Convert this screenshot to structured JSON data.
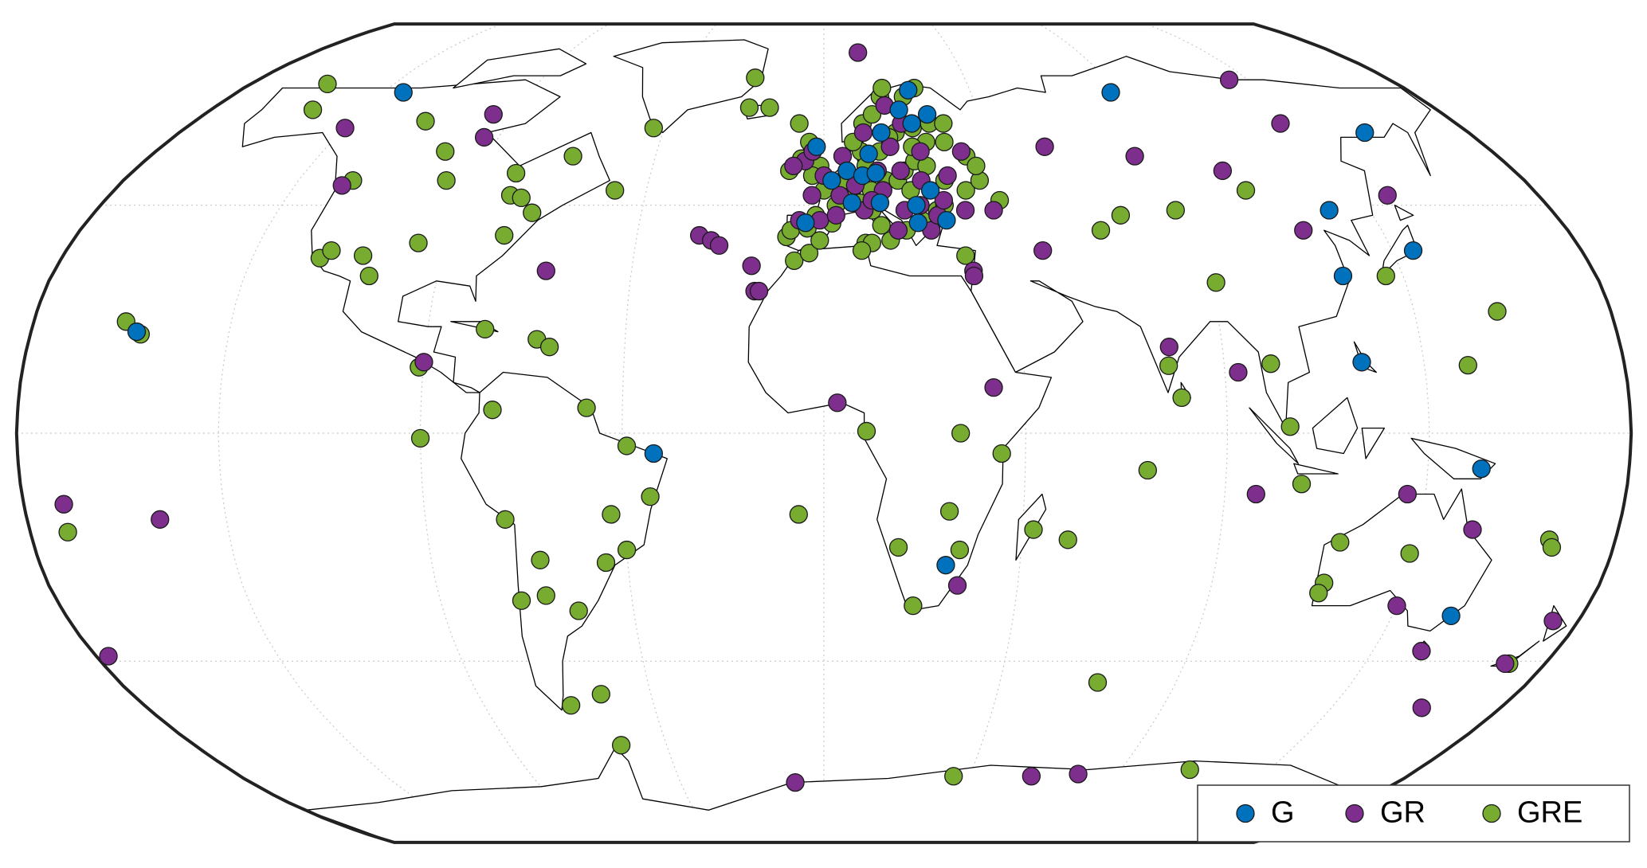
{
  "map": {
    "legend": "lower right",
    "series": [
      {
        "name": "G",
        "color": "#0072bd",
        "points": [
          [
            -129,
            69
          ],
          [
            -156,
            20
          ],
          [
            -38,
            -4
          ],
          [
            28,
            -26
          ],
          [
            88,
            69
          ],
          [
            151,
            60
          ],
          [
            125,
            44
          ],
          [
            140,
            36
          ],
          [
            121,
            31
          ],
          [
            121,
            14
          ],
          [
            147,
            -7
          ],
          [
            149,
            -36
          ],
          [
            -2,
            57
          ],
          [
            6,
            52
          ],
          [
            12,
            55.5
          ],
          [
            2,
            50
          ],
          [
            10,
            51
          ],
          [
            13.5,
            51.5
          ],
          [
            26,
            69.5
          ],
          [
            22,
            65
          ],
          [
            30,
            64
          ],
          [
            25,
            62
          ],
          [
            16,
            60
          ],
          [
            27,
            48
          ],
          [
            30,
            42
          ],
          [
            23,
            41.5
          ],
          [
            -4.5,
            41.5
          ],
          [
            14,
            45.5
          ],
          [
            7,
            45.5
          ],
          [
            23,
            45
          ]
        ]
      },
      {
        "name": "GR",
        "color": "#7e2f8e",
        "points": [
          [
            12,
            79
          ],
          [
            129,
            72
          ],
          [
            130,
            62
          ],
          [
            60,
            57
          ],
          [
            83,
            55
          ],
          [
            104,
            52
          ],
          [
            142,
            47
          ],
          [
            116,
            40
          ],
          [
            52,
            36
          ],
          [
            37,
            56
          ],
          [
            42,
            44
          ],
          [
            35,
            32
          ],
          [
            35,
            31
          ],
          [
            -96,
            64
          ],
          [
            -94,
            59
          ],
          [
            -135,
            61
          ],
          [
            -123,
            49
          ],
          [
            -65,
            32
          ],
          [
            -30,
            39
          ],
          [
            -27,
            38
          ],
          [
            -25,
            37
          ],
          [
            -17,
            33
          ],
          [
            -16,
            28
          ],
          [
            -15,
            28
          ],
          [
            -90,
            14
          ],
          [
            3,
            6
          ],
          [
            38,
            9
          ],
          [
            78,
            17
          ],
          [
            93,
            12
          ],
          [
            97,
            -12
          ],
          [
            -171,
            -14
          ],
          [
            -150,
            -17
          ],
          [
            -177,
            -44
          ],
          [
            31,
            -30
          ],
          [
            131,
            -12
          ],
          [
            147,
            -19
          ],
          [
            135,
            -34
          ],
          [
            147,
            -43
          ],
          [
            159,
            -54.5
          ],
          [
            174,
            -37
          ],
          [
            170,
            -45.5
          ],
          [
            -9,
            -71
          ],
          [
            64,
            -69.5
          ],
          [
            78,
            -69
          ],
          [
            -5,
            54
          ],
          [
            -3,
            56
          ],
          [
            -8,
            53
          ],
          [
            0,
            51
          ],
          [
            5,
            55
          ],
          [
            18,
            66
          ],
          [
            22,
            62
          ],
          [
            15,
            48
          ],
          [
            20,
            52
          ],
          [
            25,
            50
          ],
          [
            32,
            51
          ],
          [
            35,
            44
          ],
          [
            24,
            45
          ],
          [
            20,
            44
          ],
          [
            18,
            40
          ],
          [
            26,
            40
          ],
          [
            -1,
            42
          ],
          [
            -6,
            42
          ],
          [
            3,
            43
          ],
          [
            10,
            44
          ],
          [
            12,
            46
          ],
          [
            28,
            43
          ],
          [
            -3,
            47
          ],
          [
            8,
            49
          ],
          [
            14,
            52
          ],
          [
            26,
            56
          ],
          [
            18,
            57
          ],
          [
            30,
            46
          ],
          [
            11,
            60
          ],
          [
            4,
            47
          ]
        ]
      },
      {
        "name": "GRE",
        "color": "#77ac30",
        "points": [
          [
            -156,
            71
          ],
          [
            -150,
            65
          ],
          [
            -114,
            62.5
          ],
          [
            -102,
            56
          ],
          [
            -97,
            50
          ],
          [
            -67,
            55
          ],
          [
            -80,
            51.5
          ],
          [
            -79,
            47
          ],
          [
            -76,
            46.5
          ],
          [
            -72,
            43.5
          ],
          [
            -77,
            39
          ],
          [
            -53,
            48
          ],
          [
            -121,
            50
          ],
          [
            -119,
            34.5
          ],
          [
            -117,
            36
          ],
          [
            -97,
            37.5
          ],
          [
            -109,
            35
          ],
          [
            -106,
            31
          ],
          [
            -77,
            20.5
          ],
          [
            -65,
            18.5
          ],
          [
            -62,
            17
          ],
          [
            -91,
            13
          ],
          [
            -90,
            -1
          ],
          [
            -74,
            4.6
          ],
          [
            -53,
            5
          ],
          [
            -44,
            -2.5
          ],
          [
            -48,
            -16
          ],
          [
            -39,
            -12.5
          ],
          [
            -72,
            -17
          ],
          [
            -45,
            -23
          ],
          [
            -50,
            -25.5
          ],
          [
            -65,
            -25
          ],
          [
            -65,
            -32
          ],
          [
            -71,
            -33
          ],
          [
            -58,
            -35
          ],
          [
            -58,
            -51.7
          ],
          [
            -67,
            -54
          ],
          [
            -58,
            -62.5
          ],
          [
            -155,
            19.5
          ],
          [
            -159,
            22
          ],
          [
            -171.5,
            -19.5
          ],
          [
            -22,
            72.5
          ],
          [
            -22,
            65.5
          ],
          [
            -16,
            65.5
          ],
          [
            -48,
            61
          ],
          [
            -7,
            62
          ],
          [
            10,
            37.5
          ],
          [
            11.5,
            37.5
          ],
          [
            9,
            36
          ],
          [
            67,
            40
          ],
          [
            73,
            43
          ],
          [
            87,
            44
          ],
          [
            107,
            48
          ],
          [
            91,
            29.7
          ],
          [
            131,
            31
          ],
          [
            154,
            24
          ],
          [
            77.5,
            13.3
          ],
          [
            80,
            7
          ],
          [
            100.5,
            13.7
          ],
          [
            104,
            1.3
          ],
          [
            107,
            -10
          ],
          [
            72.4,
            -7.3
          ],
          [
            144.8,
            13.4
          ],
          [
            165,
            -21
          ],
          [
            166,
            -22.5
          ],
          [
            117.5,
            -21.5
          ],
          [
            116,
            -29.5
          ],
          [
            115.5,
            -31.5
          ],
          [
            133.9,
            -23.7
          ],
          [
            171,
            -45.5
          ],
          [
            9.5,
            0.4
          ],
          [
            30.5,
            0
          ],
          [
            39.7,
            -4
          ],
          [
            -5.7,
            -16
          ],
          [
            28.3,
            -15.4
          ],
          [
            31,
            -23
          ],
          [
            17,
            -22.5
          ],
          [
            21,
            -34
          ],
          [
            47.5,
            -19
          ],
          [
            55.5,
            -21
          ],
          [
            70,
            -49.3
          ],
          [
            -7,
            34
          ],
          [
            -3.5,
            35.5
          ],
          [
            33.5,
            35
          ],
          [
            40,
            -69.5
          ],
          [
            111,
            -68
          ],
          [
            -9,
            38.7
          ],
          [
            -8,
            40
          ],
          [
            -4,
            40.4
          ],
          [
            -2,
            43
          ],
          [
            2,
            41.4
          ],
          [
            -1,
            38
          ],
          [
            3,
            45
          ],
          [
            0,
            48
          ],
          [
            5,
            50
          ],
          [
            7,
            47
          ],
          [
            9,
            45.5
          ],
          [
            12,
            44
          ],
          [
            14,
            41
          ],
          [
            16,
            38
          ],
          [
            12,
            48
          ],
          [
            16,
            50
          ],
          [
            19,
            50
          ],
          [
            22,
            48
          ],
          [
            24,
            42
          ],
          [
            28,
            44
          ],
          [
            30,
            45
          ],
          [
            21,
            52
          ],
          [
            24,
            54
          ],
          [
            27,
            53
          ],
          [
            31,
            50
          ],
          [
            36,
            48
          ],
          [
            40,
            50
          ],
          [
            38,
            55
          ],
          [
            33,
            58
          ],
          [
            28,
            58
          ],
          [
            24,
            57
          ],
          [
            20,
            60
          ],
          [
            18,
            59
          ],
          [
            15,
            56
          ],
          [
            10,
            56
          ],
          [
            8,
            58
          ],
          [
            11,
            62
          ],
          [
            14,
            64
          ],
          [
            17,
            68
          ],
          [
            24,
            68
          ],
          [
            28,
            70
          ],
          [
            18,
            70
          ],
          [
            25,
            61
          ],
          [
            30,
            62
          ],
          [
            34,
            62
          ],
          [
            40,
            53
          ],
          [
            44,
            46
          ],
          [
            20,
            40
          ],
          [
            11,
            53
          ],
          [
            6,
            52
          ],
          [
            -1,
            53
          ],
          [
            -3,
            51
          ],
          [
            -6,
            54.5
          ],
          [
            -9,
            52
          ],
          [
            -4,
            58
          ]
        ]
      }
    ]
  }
}
